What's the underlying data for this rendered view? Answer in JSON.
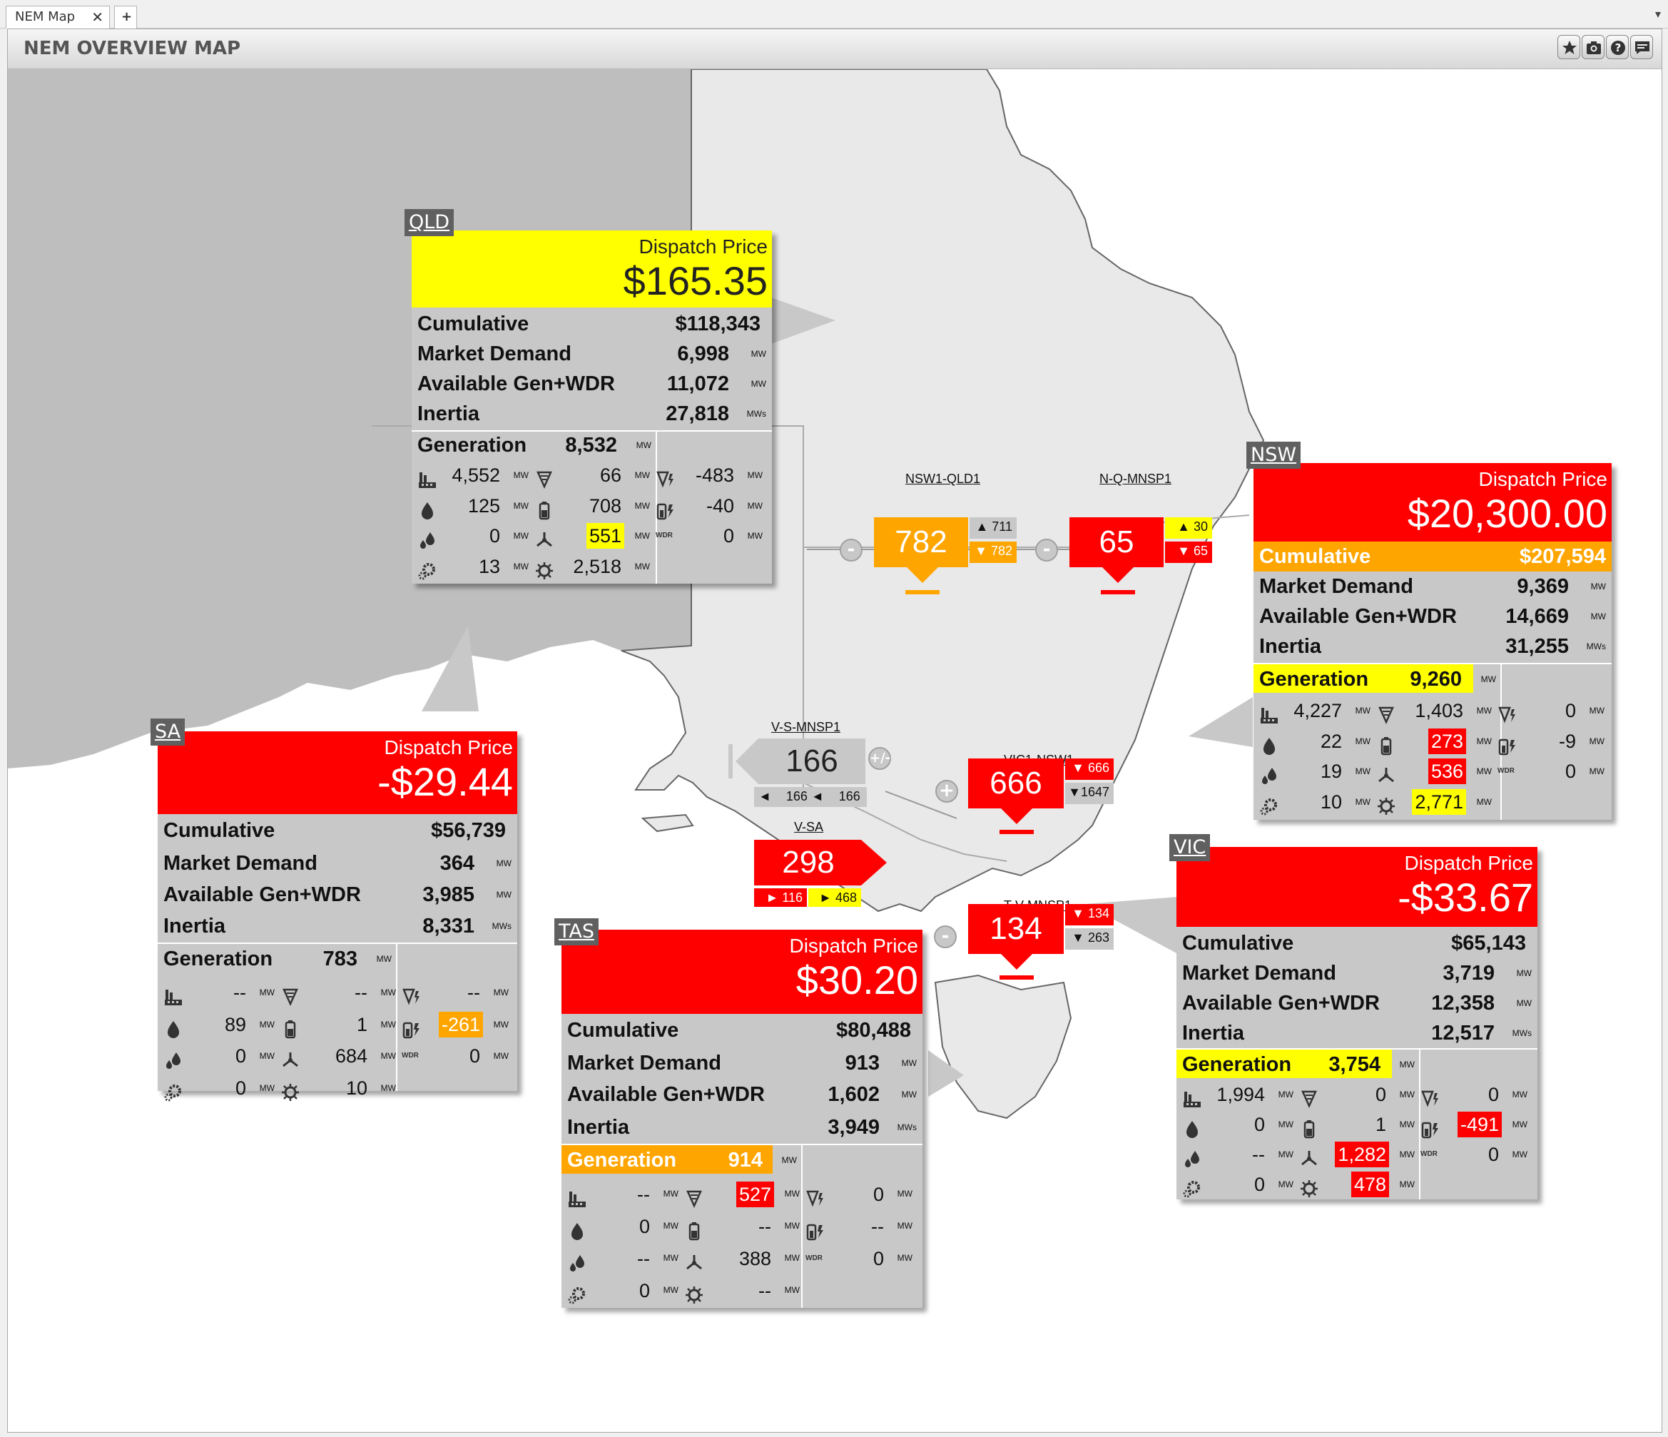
{
  "tabs": {
    "main": "NEM Map",
    "close": "✕",
    "add": "+",
    "menu": "▾"
  },
  "window": {
    "title": "NEM OVERVIEW MAP"
  },
  "toolbar_icons": [
    "star-icon",
    "camera-icon",
    "help-icon",
    "comment-icon"
  ],
  "colors": {
    "red": "#ff0000",
    "yellow": "#ffff00",
    "orange": "#ffa500",
    "panel": "#c8c8c8",
    "land": "#e8e8e8",
    "land_dark": "#bebebe"
  },
  "regions": {
    "QLD": {
      "tag": "QLD",
      "price_label": "Dispatch Price",
      "price": "$165.35",
      "cumulative": "$118,343",
      "market_demand": "6,998",
      "available": "11,072",
      "inertia": "27,818",
      "generation": "8,532",
      "cells": [
        "4,552",
        "66",
        "-483",
        "125",
        "708",
        "-40",
        "0",
        "551",
        "0",
        "13",
        "2,518"
      ]
    },
    "NSW": {
      "tag": "NSW",
      "price_label": "Dispatch Price",
      "price": "$20,300.00",
      "cumulative": "$207,594",
      "market_demand": "9,369",
      "available": "14,669",
      "inertia": "31,255",
      "generation": "9,260",
      "cells": [
        "4,227",
        "1,403",
        "0",
        "22",
        "273",
        "-9",
        "19",
        "536",
        "0",
        "10",
        "2,771"
      ]
    },
    "SA": {
      "tag": "SA",
      "price_label": "Dispatch Price",
      "price": "-$29.44",
      "cumulative": "$56,739",
      "market_demand": "364",
      "available": "3,985",
      "inertia": "8,331",
      "generation": "783",
      "cells": [
        "--",
        "--",
        "--",
        "89",
        "1",
        "-261",
        "0",
        "684",
        "0",
        "0",
        "10"
      ]
    },
    "TAS": {
      "tag": "TAS",
      "price_label": "Dispatch Price",
      "price": "$30.20",
      "cumulative": "$80,488",
      "market_demand": "913",
      "available": "1,602",
      "inertia": "3,949",
      "generation": "914",
      "cells": [
        "--",
        "527",
        "0",
        "0",
        "--",
        "--",
        "--",
        "388",
        "0",
        "0",
        "--"
      ]
    },
    "VIC": {
      "tag": "VIC",
      "price_label": "Dispatch Price",
      "price": "-$33.67",
      "cumulative": "$65,143",
      "market_demand": "3,719",
      "available": "12,358",
      "inertia": "12,517",
      "generation": "3,754",
      "cells": [
        "1,994",
        "0",
        "0",
        "0",
        "1",
        "-491",
        "--",
        "1,282",
        "0",
        "0",
        "478"
      ]
    }
  },
  "labels": {
    "cumulative": "Cumulative",
    "market_demand": "Market Demand",
    "available": "Available Gen+WDR",
    "inertia": "Inertia",
    "generation": "Generation",
    "unit_mw": "MW",
    "unit_mws": "MWs",
    "wdr": "WDR"
  },
  "interconnectors": {
    "NSW1_QLD1": {
      "name": "NSW1-QLD1",
      "flow": "782",
      "up": "711",
      "down": "782",
      "button": "-"
    },
    "N_Q_MNSP1": {
      "name": "N-Q-MNSP1",
      "flow": "65",
      "up": "30",
      "down": "65",
      "button": "-"
    },
    "V_S_MNSP1": {
      "name": "V-S-MNSP1",
      "flow": "166",
      "left": "166",
      "right": "166",
      "button": "+/-"
    },
    "VIC1_NSW1": {
      "name": "VIC1-NSW1",
      "flow": "666",
      "up": "666",
      "down": "1647",
      "button": "+"
    },
    "V_SA": {
      "name": "V-SA",
      "flow": "298",
      "left": "116",
      "right": "468"
    },
    "T_V_MNSP1": {
      "name": "T-V-MNSP1",
      "flow": "134",
      "up": "134",
      "down": "263",
      "button": "-"
    }
  }
}
